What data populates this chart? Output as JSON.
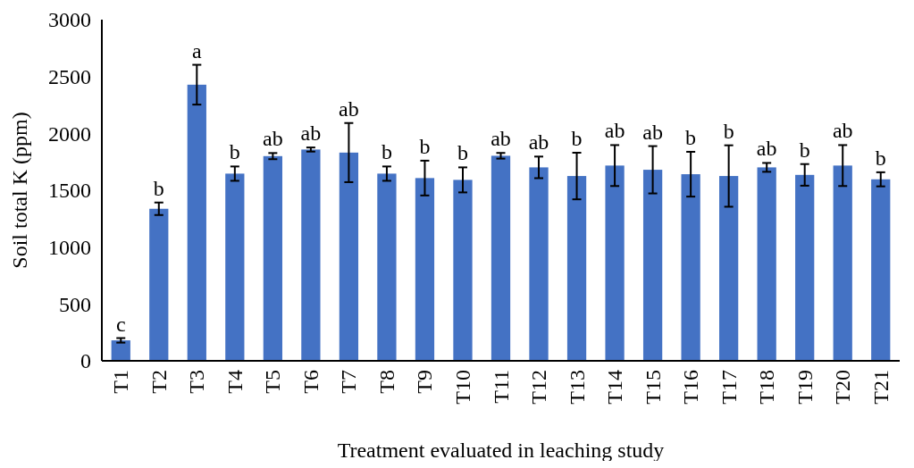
{
  "chart_data": {
    "type": "bar",
    "xlabel": "Treatment evaluated in leaching study",
    "ylabel": "Soil total K (ppm)",
    "categories": [
      "T1",
      "T2",
      "T3",
      "T4",
      "T5",
      "T6",
      "T7",
      "T8",
      "T9",
      "T10",
      "T11",
      "T12",
      "T13",
      "T14",
      "T15",
      "T16",
      "T17",
      "T18",
      "T19",
      "T20",
      "T21"
    ],
    "values": [
      180,
      1337,
      2428,
      1646,
      1800,
      1858,
      1831,
      1646,
      1607,
      1591,
      1803,
      1701,
      1625,
      1717,
      1680,
      1641,
      1625,
      1701,
      1635,
      1717,
      1596
    ],
    "errors": [
      20,
      55,
      175,
      63,
      27,
      18,
      260,
      63,
      153,
      110,
      25,
      95,
      205,
      180,
      208,
      197,
      270,
      39,
      95,
      180,
      62
    ],
    "color": "#4472c4",
    "ylim": [
      0,
      3000
    ],
    "yticks": [
      0,
      500,
      1000,
      1500,
      2000,
      2500,
      3000
    ],
    "grid": false,
    "annotations": [
      {
        "text": "c",
        "x": "T1",
        "y": 200
      },
      {
        "text": "b",
        "x": "T2",
        "y": 1392
      },
      {
        "text": "a",
        "x": "T3",
        "y": 2603
      },
      {
        "text": "b",
        "x": "T4",
        "y": 1709
      },
      {
        "text": "ab",
        "x": "T5",
        "y": 1827
      },
      {
        "text": "ab",
        "x": "T6",
        "y": 1876
      },
      {
        "text": "ab",
        "x": "T7",
        "y": 2091
      },
      {
        "text": "b",
        "x": "T8",
        "y": 1709
      },
      {
        "text": "b",
        "x": "T9",
        "y": 1760
      },
      {
        "text": "b",
        "x": "T10",
        "y": 1701
      },
      {
        "text": "ab",
        "x": "T11",
        "y": 1828
      },
      {
        "text": "ab",
        "x": "T12",
        "y": 1796
      },
      {
        "text": "b",
        "x": "T13",
        "y": 1830
      },
      {
        "text": "ab",
        "x": "T14",
        "y": 1897
      },
      {
        "text": "ab",
        "x": "T15",
        "y": 1888
      },
      {
        "text": "b",
        "x": "T16",
        "y": 1838
      },
      {
        "text": "b",
        "x": "T17",
        "y": 1895
      },
      {
        "text": "ab",
        "x": "T18",
        "y": 1740
      },
      {
        "text": "b",
        "x": "T19",
        "y": 1730
      },
      {
        "text": "ab",
        "x": "T20",
        "y": 1897
      },
      {
        "text": "b",
        "x": "T21",
        "y": 1658
      }
    ]
  }
}
